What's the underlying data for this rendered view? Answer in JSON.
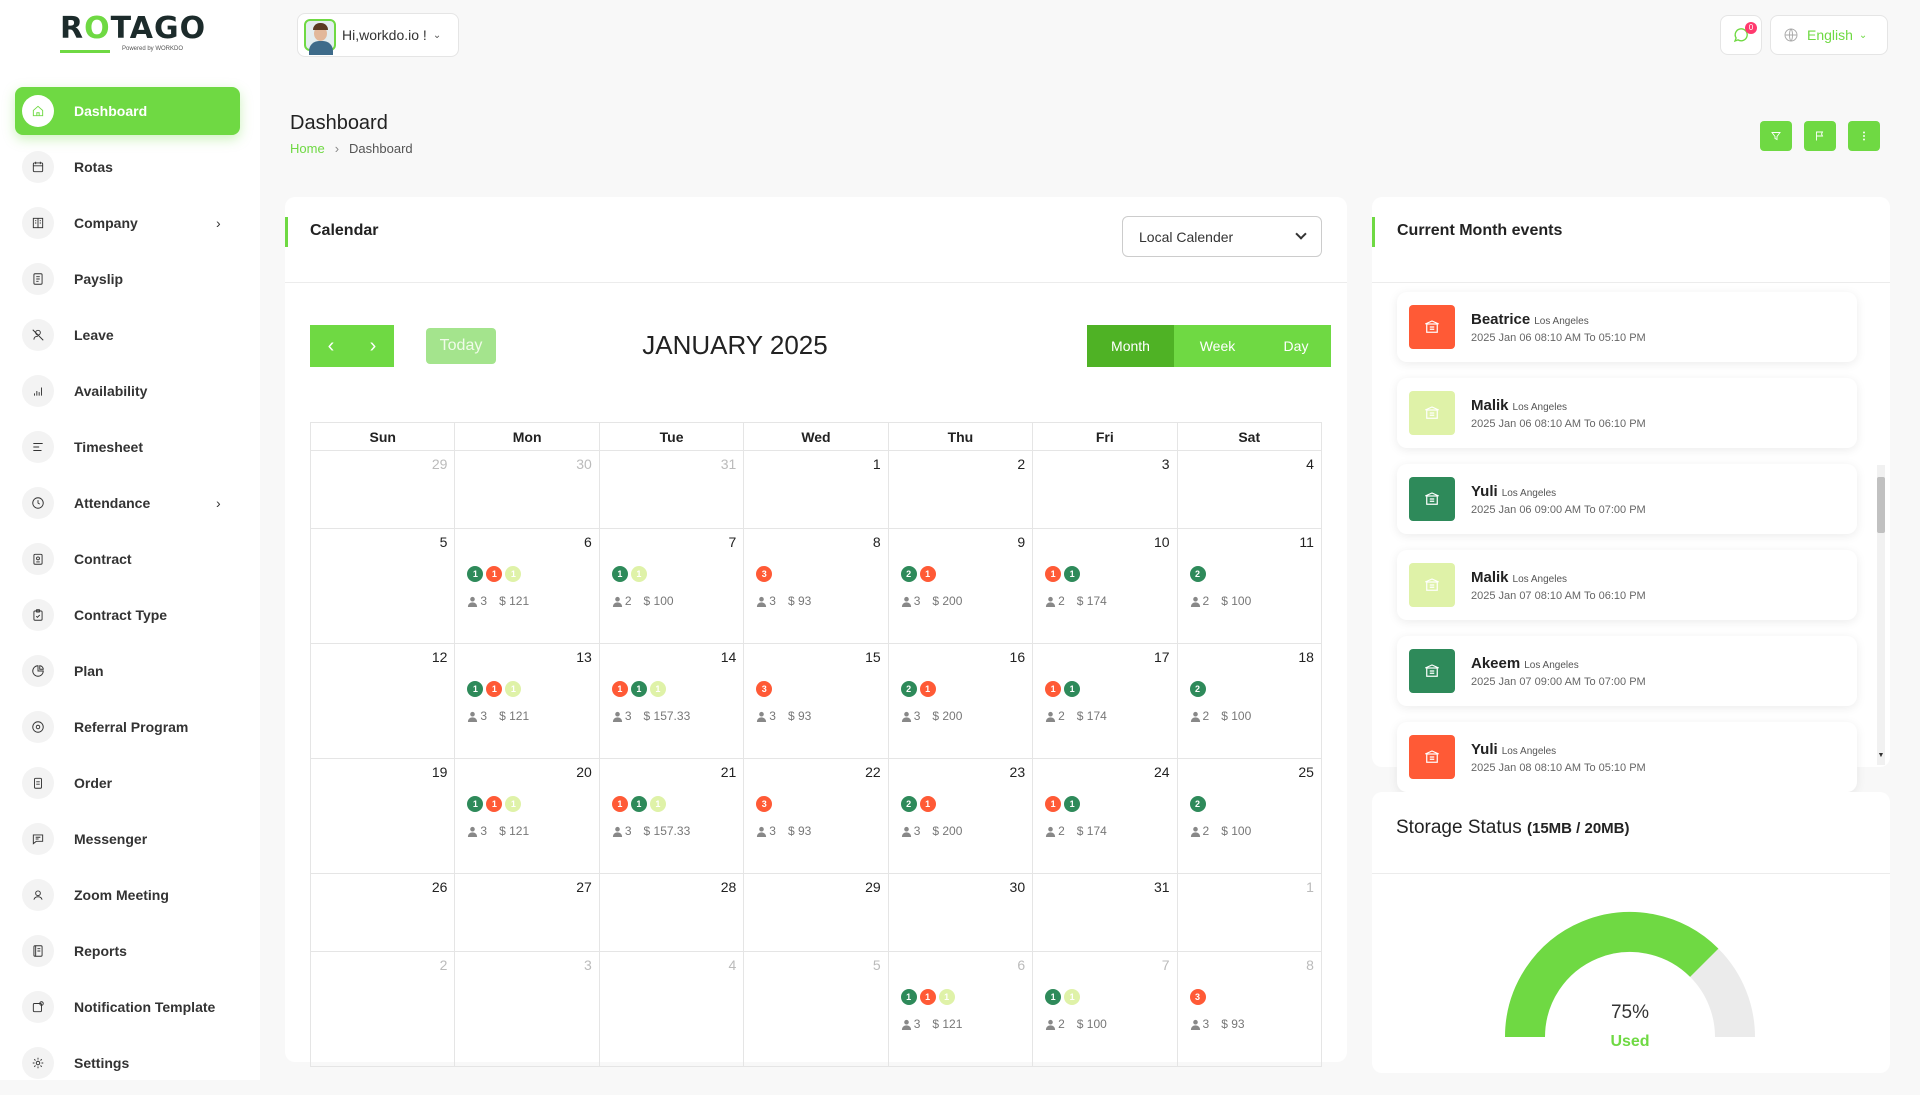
{
  "brand": {
    "name_part1": "R",
    "name_part2": "O",
    "name_part3": "TAGO",
    "tagline": "Powered by WORKDO"
  },
  "topbar": {
    "greeting": "Hi,workdo.io !",
    "notification_count": "0",
    "language": "English"
  },
  "sidebar": {
    "items": [
      {
        "label": "Dashboard",
        "icon": "home-icon",
        "active": true
      },
      {
        "label": "Rotas",
        "icon": "calendar-icon"
      },
      {
        "label": "Company",
        "icon": "building-icon",
        "has_submenu": true
      },
      {
        "label": "Payslip",
        "icon": "file-icon"
      },
      {
        "label": "Leave",
        "icon": "user-off-icon"
      },
      {
        "label": "Availability",
        "icon": "chart-icon"
      },
      {
        "label": "Timesheet",
        "icon": "list-icon"
      },
      {
        "label": "Attendance",
        "icon": "clock-icon",
        "has_submenu": true
      },
      {
        "label": "Contract",
        "icon": "contract-icon"
      },
      {
        "label": "Contract Type",
        "icon": "clipboard-icon"
      },
      {
        "label": "Plan",
        "icon": "pie-icon"
      },
      {
        "label": "Referral Program",
        "icon": "settings-circle-icon"
      },
      {
        "label": "Order",
        "icon": "order-icon"
      },
      {
        "label": "Messenger",
        "icon": "message-icon"
      },
      {
        "label": "Zoom Meeting",
        "icon": "user-circle-icon"
      },
      {
        "label": "Reports",
        "icon": "report-icon"
      },
      {
        "label": "Notification Template",
        "icon": "notification-icon"
      },
      {
        "label": "Settings",
        "icon": "gear-icon"
      }
    ]
  },
  "page": {
    "title": "Dashboard",
    "breadcrumb_home": "Home",
    "breadcrumb_current": "Dashboard"
  },
  "calendar": {
    "title": "Calendar",
    "select_value": "Local Calender",
    "today_label": "Today",
    "month_title": "JANUARY 2025",
    "views": [
      "Month",
      "Week",
      "Day"
    ],
    "active_view": "Month",
    "weekdays": [
      "Sun",
      "Mon",
      "Tue",
      "Wed",
      "Thu",
      "Fri",
      "Sat"
    ],
    "weeks": [
      [
        {
          "d": "29",
          "o": true
        },
        {
          "d": "30",
          "o": true
        },
        {
          "d": "31",
          "o": true
        },
        {
          "d": "1"
        },
        {
          "d": "2"
        },
        {
          "d": "3"
        },
        {
          "d": "4"
        }
      ],
      [
        {
          "d": "5"
        },
        {
          "d": "6",
          "b": [
            [
              "1",
              "g"
            ],
            [
              "1",
              "r"
            ],
            [
              "1",
              "l"
            ]
          ],
          "c": "3",
          "m": "$ 121"
        },
        {
          "d": "7",
          "b": [
            [
              "1",
              "g"
            ],
            [
              "1",
              "l"
            ]
          ],
          "c": "2",
          "m": "$ 100"
        },
        {
          "d": "8",
          "b": [
            [
              "3",
              "r"
            ]
          ],
          "c": "3",
          "m": "$ 93"
        },
        {
          "d": "9",
          "b": [
            [
              "2",
              "g"
            ],
            [
              "1",
              "r"
            ]
          ],
          "c": "3",
          "m": "$ 200"
        },
        {
          "d": "10",
          "b": [
            [
              "1",
              "r"
            ],
            [
              "1",
              "g"
            ]
          ],
          "c": "2",
          "m": "$ 174"
        },
        {
          "d": "11",
          "b": [
            [
              "2",
              "g"
            ]
          ],
          "c": "2",
          "m": "$ 100"
        }
      ],
      [
        {
          "d": "12"
        },
        {
          "d": "13",
          "b": [
            [
              "1",
              "g"
            ],
            [
              "1",
              "r"
            ],
            [
              "1",
              "l"
            ]
          ],
          "c": "3",
          "m": "$ 121"
        },
        {
          "d": "14",
          "b": [
            [
              "1",
              "r"
            ],
            [
              "1",
              "g"
            ],
            [
              "1",
              "l"
            ]
          ],
          "c": "3",
          "m": "$ 157.33"
        },
        {
          "d": "15",
          "b": [
            [
              "3",
              "r"
            ]
          ],
          "c": "3",
          "m": "$ 93"
        },
        {
          "d": "16",
          "b": [
            [
              "2",
              "g"
            ],
            [
              "1",
              "r"
            ]
          ],
          "c": "3",
          "m": "$ 200"
        },
        {
          "d": "17",
          "b": [
            [
              "1",
              "r"
            ],
            [
              "1",
              "g"
            ]
          ],
          "c": "2",
          "m": "$ 174"
        },
        {
          "d": "18",
          "b": [
            [
              "2",
              "g"
            ]
          ],
          "c": "2",
          "m": "$ 100"
        }
      ],
      [
        {
          "d": "19"
        },
        {
          "d": "20",
          "b": [
            [
              "1",
              "g"
            ],
            [
              "1",
              "r"
            ],
            [
              "1",
              "l"
            ]
          ],
          "c": "3",
          "m": "$ 121"
        },
        {
          "d": "21",
          "b": [
            [
              "1",
              "r"
            ],
            [
              "1",
              "g"
            ],
            [
              "1",
              "l"
            ]
          ],
          "c": "3",
          "m": "$ 157.33"
        },
        {
          "d": "22",
          "b": [
            [
              "3",
              "r"
            ]
          ],
          "c": "3",
          "m": "$ 93"
        },
        {
          "d": "23",
          "b": [
            [
              "2",
              "g"
            ],
            [
              "1",
              "r"
            ]
          ],
          "c": "3",
          "m": "$ 200"
        },
        {
          "d": "24",
          "b": [
            [
              "1",
              "r"
            ],
            [
              "1",
              "g"
            ]
          ],
          "c": "2",
          "m": "$ 174"
        },
        {
          "d": "25",
          "b": [
            [
              "2",
              "g"
            ]
          ],
          "c": "2",
          "m": "$ 100"
        }
      ],
      [
        {
          "d": "26"
        },
        {
          "d": "27"
        },
        {
          "d": "28"
        },
        {
          "d": "29"
        },
        {
          "d": "30"
        },
        {
          "d": "31"
        },
        {
          "d": "1",
          "o": true
        }
      ],
      [
        {
          "d": "2",
          "o": true
        },
        {
          "d": "3",
          "o": true
        },
        {
          "d": "4",
          "o": true
        },
        {
          "d": "5",
          "o": true
        },
        {
          "d": "6",
          "o": true,
          "b": [
            [
              "1",
              "g"
            ],
            [
              "1",
              "r"
            ],
            [
              "1",
              "l"
            ]
          ],
          "c": "3",
          "m": "$ 121"
        },
        {
          "d": "7",
          "o": true,
          "b": [
            [
              "1",
              "g"
            ],
            [
              "1",
              "l"
            ]
          ],
          "c": "2",
          "m": "$ 100"
        },
        {
          "d": "8",
          "o": true,
          "b": [
            [
              "3",
              "r"
            ]
          ],
          "c": "3",
          "m": "$ 93"
        }
      ]
    ]
  },
  "events": {
    "title": "Current Month events",
    "items": [
      {
        "name": "Beatrice",
        "location": "Los Angeles",
        "time": "2025 Jan 06 08:10 AM To 05:10 PM",
        "color": "#ff5a36"
      },
      {
        "name": "Malik",
        "location": "Los Angeles",
        "time": "2025 Jan 06 08:10 AM To 06:10 PM",
        "color": "#dff2a8"
      },
      {
        "name": "Yuli",
        "location": "Los Angeles",
        "time": "2025 Jan 06 09:00 AM To 07:00 PM",
        "color": "#2e8a5a"
      },
      {
        "name": "Malik",
        "location": "Los Angeles",
        "time": "2025 Jan 07 08:10 AM To 06:10 PM",
        "color": "#dff2a8"
      },
      {
        "name": "Akeem",
        "location": "Los Angeles",
        "time": "2025 Jan 07 09:00 AM To 07:00 PM",
        "color": "#2e8a5a"
      },
      {
        "name": "Yuli",
        "location": "Los Angeles",
        "time": "2025 Jan 08 08:10 AM To 05:10 PM",
        "color": "#ff5a36"
      }
    ]
  },
  "storage": {
    "title": "Storage Status",
    "usage": "(15MB / 20MB)",
    "percent_label": "75%",
    "used_label": "Used",
    "used_fraction": 0.75
  },
  "colors": {
    "accent": "#6fd943",
    "dot_green": "#2e8a5a",
    "dot_red": "#ff5a36",
    "dot_light": "#dff2a8"
  }
}
